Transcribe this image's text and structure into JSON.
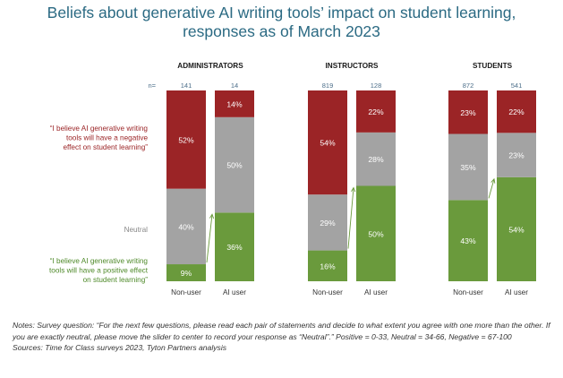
{
  "title_line1": "Beliefs about generative AI writing tools’ impact on student learning,",
  "title_line2": "responses as of March 2023",
  "n_label": "n=",
  "legend": {
    "negative_lines": [
      "“I believe AI generative writing",
      "tools will have a negative",
      "effect on student learning”"
    ],
    "neutral": "Neutral",
    "positive_lines": [
      "“I believe AI generative writing",
      "tools will have a positive effect",
      "on student learning”"
    ]
  },
  "notes": "Notes: Survey question: “For the next few questions, please read each pair of statements and decide to what extent you agree with one more than the other. If you are exactly neutral, please move the slider to center to record your response as “Neutral”.” Positive = 0-33, Neutral = 34-66, Negative = 67-100",
  "sources": "Sources: Time for Class surveys 2023, Tyton Partners analysis",
  "colors": {
    "positive": "#6a9a3c",
    "neutral": "#a3a3a3",
    "negative": "#9b2426",
    "title": "#2b6a83",
    "legend_negative": "#9b2426",
    "legend_positive": "#4f8a2a"
  },
  "chart_data": {
    "type": "bar",
    "stacked": true,
    "unit": "%",
    "segments": [
      "positive",
      "neutral",
      "negative"
    ],
    "groups": [
      {
        "name": "ADMINISTRATORS",
        "bars": [
          {
            "label": "Non-user",
            "n": "141",
            "positive": 9,
            "neutral": 40,
            "negative": 52
          },
          {
            "label": "AI user",
            "n": "14",
            "positive": 36,
            "neutral": 50,
            "negative": 14
          }
        ]
      },
      {
        "name": "INSTRUCTORS",
        "bars": [
          {
            "label": "Non-user",
            "n": "819",
            "positive": 16,
            "neutral": 29,
            "negative": 54
          },
          {
            "label": "AI user",
            "n": "128",
            "positive": 50,
            "neutral": 28,
            "negative": 22
          }
        ]
      },
      {
        "name": "STUDENTS",
        "bars": [
          {
            "label": "Non-user",
            "n": "872",
            "positive": 43,
            "neutral": 35,
            "negative": 23
          },
          {
            "label": "AI user",
            "n": "541",
            "positive": 54,
            "neutral": 23,
            "negative": 22
          }
        ]
      }
    ]
  }
}
